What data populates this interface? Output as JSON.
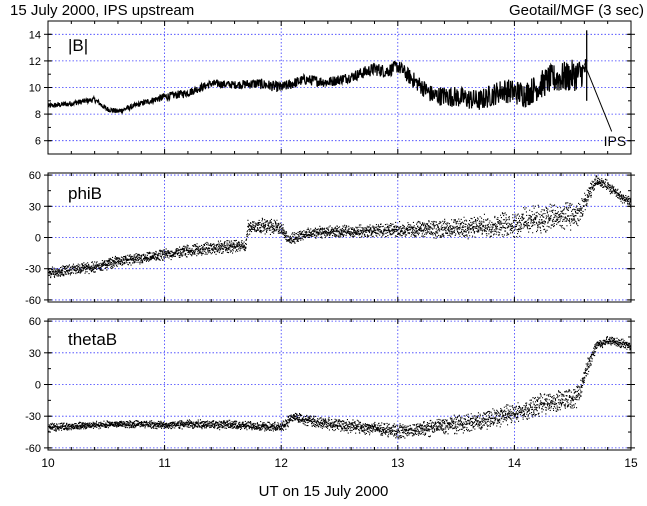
{
  "header": {
    "title_left": "15 July 2000, IPS upstream",
    "title_right": "Geotail/MGF (3 sec)"
  },
  "colors": {
    "frame": "#000000",
    "grid": "#3a3aff",
    "data": "#000000",
    "background": "#ffffff"
  },
  "chart_data": [
    {
      "type": "line",
      "panel_label": "|B|",
      "annotation": "IPS",
      "annotation_x": 14.8,
      "ylim": [
        5,
        15
      ],
      "yticks": [
        6,
        8,
        10,
        12,
        14
      ],
      "x": [
        10.0,
        10.2,
        10.4,
        10.5,
        10.6,
        10.8,
        11.0,
        11.2,
        11.4,
        11.6,
        11.8,
        12.0,
        12.2,
        12.4,
        12.6,
        12.8,
        12.9,
        13.0,
        13.1,
        13.3,
        13.5,
        13.7,
        13.9,
        14.1,
        14.3,
        14.45,
        14.55,
        14.6,
        14.62
      ],
      "y": [
        8.6,
        8.8,
        9.1,
        8.4,
        8.2,
        8.8,
        9.3,
        9.6,
        10.3,
        10.2,
        10.3,
        10.0,
        10.6,
        10.4,
        10.8,
        11.4,
        11.2,
        11.6,
        10.8,
        9.4,
        9.3,
        9.0,
        9.8,
        9.5,
        10.6,
        10.8,
        11.0,
        11.2,
        12.0
      ],
      "spread": [
        0.2,
        0.2,
        0.2,
        0.2,
        0.2,
        0.2,
        0.3,
        0.3,
        0.3,
        0.3,
        0.4,
        0.4,
        0.4,
        0.4,
        0.4,
        0.5,
        0.5,
        0.5,
        0.6,
        0.7,
        0.8,
        0.8,
        0.9,
        1.0,
        1.1,
        1.2,
        1.2,
        1.0,
        0.3
      ]
    },
    {
      "type": "scatter",
      "panel_label": "phiB",
      "ylim": [
        -62,
        62
      ],
      "yticks": [
        -60,
        -30,
        0,
        30,
        60
      ],
      "x": [
        10.0,
        10.2,
        10.4,
        10.6,
        10.8,
        11.0,
        11.2,
        11.4,
        11.6,
        11.69,
        11.71,
        11.8,
        12.0,
        12.05,
        12.2,
        12.4,
        12.6,
        12.8,
        13.0,
        13.2,
        13.4,
        13.6,
        13.8,
        14.0,
        14.2,
        14.4,
        14.55,
        14.65,
        14.7,
        14.8,
        14.9,
        15.0
      ],
      "y": [
        -34,
        -30,
        -28,
        -22,
        -20,
        -16,
        -12,
        -10,
        -8,
        -8,
        10,
        12,
        10,
        -2,
        4,
        6,
        6,
        7,
        8,
        8,
        9,
        10,
        12,
        14,
        18,
        20,
        22,
        45,
        56,
        50,
        40,
        34
      ],
      "spread": [
        6,
        6,
        6,
        6,
        6,
        6,
        7,
        7,
        7,
        7,
        8,
        8,
        8,
        6,
        6,
        7,
        7,
        7,
        8,
        9,
        10,
        11,
        12,
        14,
        15,
        15,
        14,
        10,
        5,
        6,
        6,
        6
      ]
    },
    {
      "type": "scatter",
      "panel_label": "thetaB",
      "ylim": [
        -62,
        62
      ],
      "yticks": [
        -60,
        -30,
        0,
        30,
        60
      ],
      "x": [
        10.0,
        10.2,
        10.4,
        10.6,
        10.8,
        11.0,
        11.2,
        11.4,
        11.6,
        11.8,
        12.0,
        12.05,
        12.1,
        12.3,
        12.5,
        12.7,
        12.9,
        13.0,
        13.2,
        13.4,
        13.6,
        13.8,
        14.0,
        14.2,
        14.4,
        14.55,
        14.6,
        14.65,
        14.7,
        14.8,
        14.9,
        15.0
      ],
      "y": [
        -40,
        -39,
        -38,
        -37,
        -37,
        -38,
        -37,
        -37,
        -38,
        -39,
        -40,
        -35,
        -30,
        -35,
        -38,
        -40,
        -42,
        -44,
        -42,
        -38,
        -36,
        -32,
        -26,
        -20,
        -14,
        -10,
        10,
        25,
        38,
        42,
        40,
        36
      ],
      "spread": [
        4,
        4,
        4,
        4,
        4,
        4,
        5,
        5,
        5,
        5,
        5,
        6,
        6,
        6,
        7,
        7,
        7,
        8,
        8,
        9,
        10,
        10,
        11,
        12,
        12,
        12,
        10,
        8,
        6,
        5,
        5,
        5
      ]
    }
  ],
  "x_axis": {
    "label": "UT on 15 July 2000",
    "xlim": [
      10,
      15
    ],
    "ticks": [
      "10",
      "11",
      "12",
      "13",
      "14",
      "15"
    ]
  }
}
